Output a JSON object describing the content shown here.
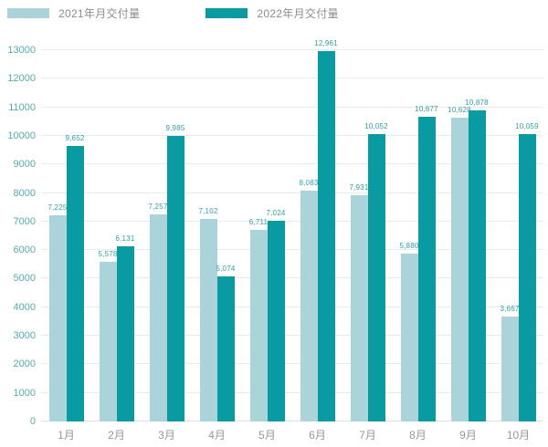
{
  "chart_data": {
    "type": "bar",
    "title": "",
    "xlabel": "",
    "ylabel": "",
    "ylim": [
      0,
      13000
    ],
    "ytick_step": 1000,
    "yticks": [
      0,
      1000,
      2000,
      3000,
      4000,
      5000,
      6000,
      7000,
      8000,
      9000,
      10000,
      11000,
      12000,
      13000
    ],
    "grid": true,
    "legend_position": "top-left",
    "categories": [
      "1月",
      "2月",
      "3月",
      "4月",
      "5月",
      "6月",
      "7月",
      "8月",
      "9月",
      "10月"
    ],
    "series": [
      {
        "name": "2021年月交付量",
        "color": "#aad4d9",
        "values": [
          7225,
          5578,
          7257,
          7102,
          6711,
          8083,
          7931,
          5880,
          10628,
          3667
        ],
        "labels": [
          "7,225",
          "5,578",
          "7,257",
          "7,102",
          "6,711",
          "8,083",
          "7,931",
          "5,880",
          "10,628",
          "3,667"
        ]
      },
      {
        "name": "2022年月交付量",
        "color": "#0a9aa1",
        "values": [
          9652,
          6131,
          9985,
          5074,
          7024,
          12961,
          10052,
          10677,
          10878,
          10059
        ],
        "labels": [
          "9,652",
          "6,131",
          "9,985",
          "5,074",
          "7,024",
          "12,961",
          "10,052",
          "10,677",
          "10,878",
          "10,059"
        ]
      }
    ]
  },
  "colors": {
    "series_2021": "#aad4d9",
    "series_2022": "#0a9aa1",
    "value_label": "#2d9fa5",
    "y_axis_label": "#55aab0",
    "x_axis_label": "#979797",
    "legend_text": "#8c8c8c",
    "gridline": "#e9e9e9"
  }
}
